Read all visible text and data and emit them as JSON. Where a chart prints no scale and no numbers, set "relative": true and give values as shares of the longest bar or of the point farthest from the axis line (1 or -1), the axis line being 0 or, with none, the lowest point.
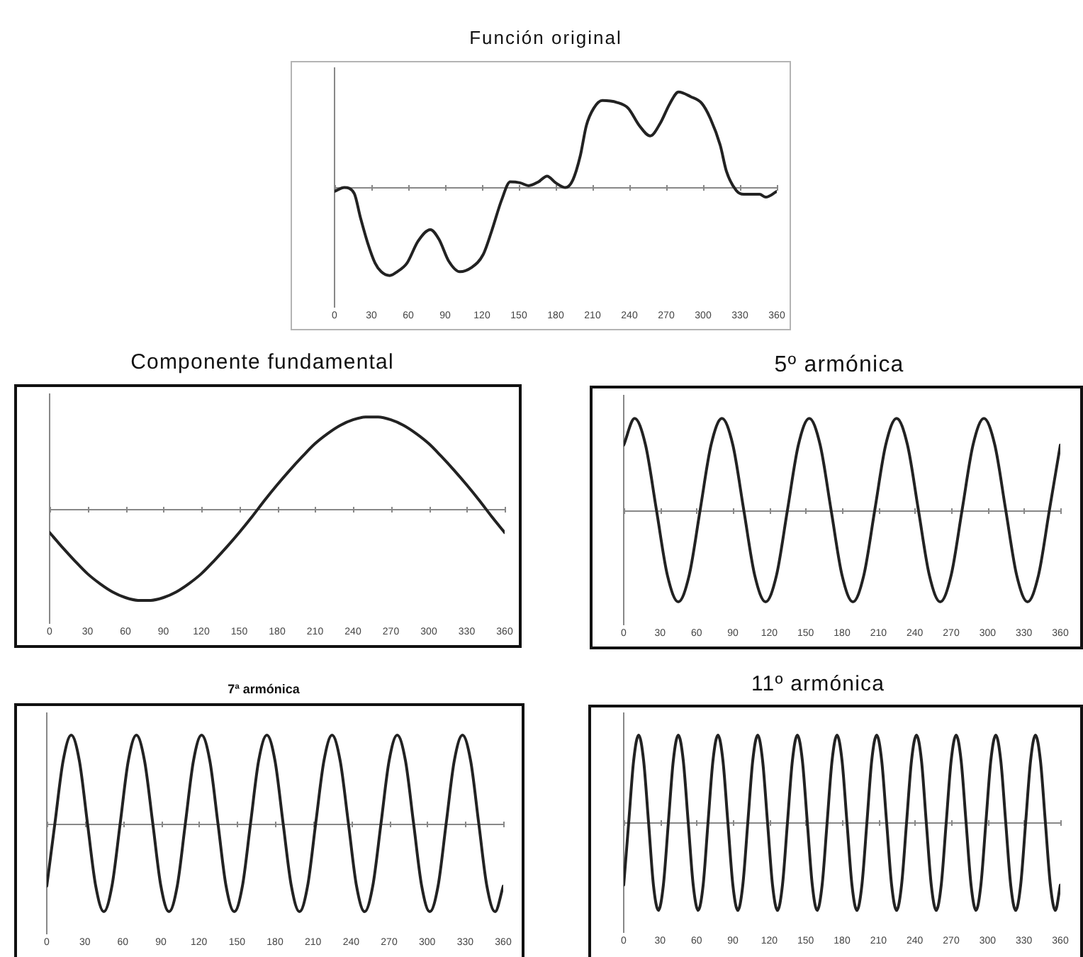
{
  "chart_data": [
    {
      "type": "line",
      "title": "Función original",
      "relative": true,
      "color": "#222222",
      "xlim": [
        0,
        360
      ],
      "xticks": [
        0,
        30,
        60,
        90,
        120,
        150,
        180,
        210,
        240,
        270,
        300,
        330,
        360
      ],
      "x": [
        0,
        8,
        16,
        21,
        27,
        33,
        38,
        45,
        51,
        59,
        68,
        78,
        85,
        93,
        102,
        111,
        121,
        128,
        136,
        143,
        151,
        158,
        166,
        173,
        180,
        188,
        194,
        200,
        205,
        211,
        218,
        230,
        239,
        248,
        257,
        265,
        273,
        280,
        290,
        299,
        306,
        314,
        319,
        327,
        333,
        346,
        351,
        360
      ],
      "values": [
        -0.04,
        0.0,
        -0.06,
        -0.31,
        -0.58,
        -0.79,
        -0.88,
        -0.92,
        -0.88,
        -0.79,
        -0.56,
        -0.44,
        -0.54,
        -0.77,
        -0.88,
        -0.84,
        -0.7,
        -0.45,
        -0.13,
        0.06,
        0.05,
        0.02,
        0.06,
        0.12,
        0.05,
        0.0,
        0.08,
        0.33,
        0.65,
        0.83,
        0.91,
        0.89,
        0.83,
        0.65,
        0.54,
        0.67,
        0.88,
        1.0,
        0.95,
        0.88,
        0.72,
        0.44,
        0.17,
        -0.03,
        -0.07,
        -0.07,
        -0.1,
        -0.04
      ]
    },
    {
      "type": "line",
      "title": "Componente fundamental",
      "relative": true,
      "color": "#222222",
      "xlim": [
        0,
        360
      ],
      "xticks": [
        0,
        30,
        60,
        90,
        120,
        150,
        180,
        210,
        240,
        270,
        300,
        330,
        360
      ],
      "x": [
        0,
        10,
        20,
        30,
        40,
        50,
        60,
        70,
        80,
        90,
        100,
        110,
        120,
        130,
        140,
        150,
        160,
        170,
        180,
        190,
        200,
        210,
        220,
        230,
        240,
        250,
        260,
        270,
        280,
        290,
        300,
        310,
        320,
        330,
        340,
        350,
        360
      ],
      "values": [
        -0.26,
        -0.42,
        -0.57,
        -0.71,
        -0.82,
        -0.91,
        -0.97,
        -1.0,
        -1.0,
        -0.97,
        -0.91,
        -0.82,
        -0.71,
        -0.57,
        -0.42,
        -0.26,
        -0.09,
        0.09,
        0.26,
        0.42,
        0.57,
        0.71,
        0.82,
        0.91,
        0.97,
        1.0,
        1.0,
        0.97,
        0.91,
        0.82,
        0.71,
        0.57,
        0.42,
        0.26,
        0.09,
        -0.09,
        -0.26
      ]
    },
    {
      "type": "line",
      "title": "5º armónica",
      "relative": true,
      "color": "#222222",
      "xlim": [
        0,
        360
      ],
      "xticks": [
        0,
        30,
        60,
        90,
        120,
        150,
        180,
        210,
        240,
        270,
        300,
        330,
        360
      ],
      "x": [
        0,
        9,
        18,
        27,
        36,
        45,
        54,
        63,
        72,
        81,
        90,
        99,
        108,
        117,
        126,
        135,
        144,
        153,
        162,
        171,
        180,
        189,
        198,
        207,
        216,
        225,
        234,
        243,
        252,
        261,
        270,
        279,
        288,
        297,
        306,
        315,
        324,
        333,
        342,
        351,
        360
      ],
      "values": [
        0.71,
        1,
        0.71,
        0,
        -0.71,
        -1,
        -0.71,
        0,
        0.71,
        1,
        0.71,
        0,
        -0.71,
        -1,
        -0.71,
        0,
        0.71,
        1,
        0.71,
        0,
        -0.71,
        -1,
        -0.71,
        0,
        0.71,
        1,
        0.71,
        0,
        -0.71,
        -1,
        -0.71,
        0,
        0.71,
        1,
        0.71,
        0,
        -0.71,
        -1,
        -0.71,
        0,
        0.71
      ]
    },
    {
      "type": "line",
      "title": "7ª armónica",
      "relative": true,
      "color": "#222222",
      "xlim": [
        0,
        360
      ],
      "xticks": [
        0,
        30,
        60,
        90,
        120,
        150,
        180,
        210,
        240,
        270,
        300,
        330,
        360
      ],
      "x": [
        0,
        6.4,
        12.9,
        19.3,
        25.7,
        32.1,
        38.6,
        45,
        51.4,
        57.9,
        64.3,
        70.7,
        77.1,
        83.6,
        90,
        96.4,
        102.9,
        109.3,
        115.7,
        122.1,
        128.6,
        135,
        141.4,
        147.9,
        154.3,
        160.7,
        167.1,
        173.6,
        180,
        186.4,
        192.9,
        199.3,
        205.7,
        212.1,
        218.6,
        225,
        231.4,
        237.9,
        244.3,
        250.7,
        257.1,
        263.6,
        270,
        276.4,
        282.9,
        289.3,
        295.7,
        302.1,
        308.6,
        315,
        321.4,
        327.9,
        334.3,
        340.7,
        347.1,
        353.6,
        360
      ],
      "values": [
        -0.71,
        0,
        0.71,
        1,
        0.71,
        0,
        -0.71,
        -1,
        -0.71,
        0,
        0.71,
        1,
        0.71,
        0,
        -0.71,
        -1,
        -0.71,
        0,
        0.71,
        1,
        0.71,
        0,
        -0.71,
        -1,
        -0.71,
        0,
        0.71,
        1,
        0.71,
        0,
        -0.71,
        -1,
        -0.71,
        0,
        0.71,
        1,
        0.71,
        0,
        -0.71,
        -1,
        -0.71,
        0,
        0.71,
        1,
        0.71,
        0,
        -0.71,
        -1,
        -0.71,
        0,
        0.71,
        1,
        0.71,
        0,
        -0.71,
        -1,
        -0.71
      ]
    },
    {
      "type": "line",
      "title": "11º armónica",
      "relative": true,
      "color": "#222222",
      "xlim": [
        0,
        360
      ],
      "xticks": [
        0,
        30,
        60,
        90,
        120,
        150,
        180,
        210,
        240,
        270,
        300,
        330,
        360
      ],
      "x": [
        0,
        4.1,
        8.2,
        12.3,
        16.4,
        20.5,
        24.5,
        28.6,
        32.7,
        36.8,
        40.9,
        45,
        49.1,
        53.2,
        57.3,
        61.4,
        65.5,
        69.5,
        73.6,
        77.7,
        81.8,
        85.9,
        90,
        94.1,
        98.2,
        102.3,
        106.4,
        110.5,
        114.5,
        118.6,
        122.7,
        126.8,
        130.9,
        135,
        139.1,
        143.2,
        147.3,
        151.4,
        155.5,
        159.5,
        163.6,
        167.7,
        171.8,
        175.9,
        180,
        184.1,
        188.2,
        192.3,
        196.4,
        200.5,
        204.5,
        208.6,
        212.7,
        216.8,
        220.9,
        225,
        229.1,
        233.2,
        237.3,
        241.4,
        245.5,
        249.5,
        253.6,
        257.7,
        261.8,
        265.9,
        270,
        274.1,
        278.2,
        282.3,
        286.4,
        290.5,
        294.5,
        298.6,
        302.7,
        306.8,
        310.9,
        315,
        319.1,
        323.2,
        327.3,
        331.4,
        335.5,
        339.5,
        343.6,
        347.7,
        351.8,
        355.9,
        360
      ],
      "values": [
        -0.71,
        0,
        0.71,
        1,
        0.71,
        0,
        -0.71,
        -1,
        -0.71,
        0,
        0.71,
        1,
        0.71,
        0,
        -0.71,
        -1,
        -0.71,
        0,
        0.71,
        1,
        0.71,
        0,
        -0.71,
        -1,
        -0.71,
        0,
        0.71,
        1,
        0.71,
        0,
        -0.71,
        -1,
        -0.71,
        0,
        0.71,
        1,
        0.71,
        0,
        -0.71,
        -1,
        -0.71,
        0,
        0.71,
        1,
        0.71,
        0,
        -0.71,
        -1,
        -0.71,
        0,
        0.71,
        1,
        0.71,
        0,
        -0.71,
        -1,
        -0.71,
        0,
        0.71,
        1,
        0.71,
        0,
        -0.71,
        -1,
        -0.71,
        0,
        0.71,
        1,
        0.71,
        0,
        -0.71,
        -1,
        -0.71,
        0,
        0.71,
        1,
        0.71,
        0,
        -0.71,
        -1,
        -0.71,
        0,
        0.71,
        1,
        0.71,
        0,
        -0.71,
        -1,
        -0.71
      ]
    }
  ]
}
